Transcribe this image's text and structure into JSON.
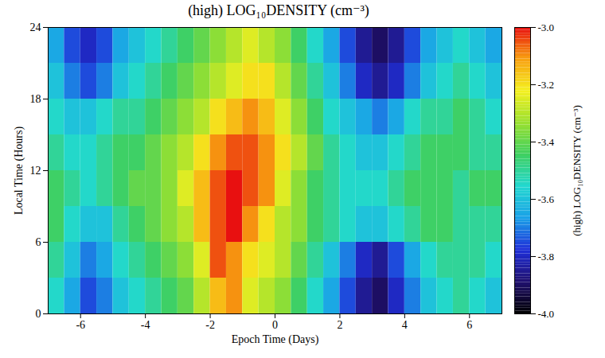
{
  "chart_data": {
    "type": "heatmap",
    "title": "(high) LOG₁₀DENSITY (cm⁻³)",
    "x_label": "Epoch Time (Days)",
    "y_label": "Local Time (Hours)",
    "xlim": [
      -7,
      7
    ],
    "xticks": [
      -6,
      -4,
      -2,
      0,
      2,
      4,
      6
    ],
    "ylim": [
      0,
      24
    ],
    "yticks": [
      0,
      6,
      12,
      18,
      24
    ],
    "x_edges": [
      -7,
      -6.5,
      -6,
      -5.5,
      -5,
      -4.5,
      -4,
      -3.5,
      -3,
      -2.5,
      -2,
      -1.5,
      -1,
      -0.5,
      0,
      0.5,
      1,
      1.5,
      2,
      2.5,
      3,
      3.5,
      4,
      4.5,
      5,
      5.5,
      6,
      6.5,
      7
    ],
    "y_edges": [
      0,
      3,
      6,
      9,
      12,
      15,
      18,
      21,
      24
    ],
    "values": [
      [
        -3.55,
        -3.65,
        -3.75,
        -3.7,
        -3.6,
        -3.55,
        -3.5,
        -3.45,
        -3.4,
        -3.3,
        -3.15,
        -3.1,
        -3.25,
        -3.3,
        -3.35,
        -3.45,
        -3.55,
        -3.65,
        -3.75,
        -3.85,
        -3.9,
        -3.8,
        -3.7,
        -3.6,
        -3.55,
        -3.5,
        -3.55,
        -3.6
      ],
      [
        -3.5,
        -3.6,
        -3.7,
        -3.65,
        -3.55,
        -3.5,
        -3.45,
        -3.4,
        -3.35,
        -3.25,
        -3.05,
        -3.1,
        -3.2,
        -3.25,
        -3.3,
        -3.4,
        -3.5,
        -3.6,
        -3.7,
        -3.8,
        -3.85,
        -3.75,
        -3.65,
        -3.55,
        -3.5,
        -3.5,
        -3.5,
        -3.55
      ],
      [
        -3.45,
        -3.55,
        -3.6,
        -3.6,
        -3.5,
        -3.45,
        -3.4,
        -3.35,
        -3.3,
        -3.15,
        -3.05,
        -3.0,
        -3.1,
        -3.2,
        -3.3,
        -3.35,
        -3.45,
        -3.5,
        -3.55,
        -3.6,
        -3.6,
        -3.55,
        -3.5,
        -3.45,
        -3.45,
        -3.5,
        -3.5,
        -3.5
      ],
      [
        -3.45,
        -3.5,
        -3.55,
        -3.5,
        -3.45,
        -3.4,
        -3.4,
        -3.35,
        -3.25,
        -3.15,
        -3.05,
        -3.0,
        -3.05,
        -3.1,
        -3.25,
        -3.35,
        -3.45,
        -3.5,
        -3.55,
        -3.55,
        -3.55,
        -3.5,
        -3.45,
        -3.45,
        -3.45,
        -3.5,
        -3.45,
        -3.45
      ],
      [
        -3.5,
        -3.55,
        -3.55,
        -3.5,
        -3.45,
        -3.45,
        -3.4,
        -3.35,
        -3.3,
        -3.2,
        -3.1,
        -3.05,
        -3.05,
        -3.1,
        -3.2,
        -3.3,
        -3.4,
        -3.5,
        -3.55,
        -3.6,
        -3.6,
        -3.55,
        -3.5,
        -3.45,
        -3.45,
        -3.45,
        -3.5,
        -3.5
      ],
      [
        -3.55,
        -3.6,
        -3.6,
        -3.55,
        -3.5,
        -3.5,
        -3.45,
        -3.4,
        -3.35,
        -3.3,
        -3.2,
        -3.15,
        -3.1,
        -3.15,
        -3.25,
        -3.35,
        -3.45,
        -3.55,
        -3.6,
        -3.65,
        -3.7,
        -3.65,
        -3.55,
        -3.5,
        -3.5,
        -3.45,
        -3.5,
        -3.55
      ],
      [
        -3.6,
        -3.7,
        -3.75,
        -3.7,
        -3.6,
        -3.55,
        -3.5,
        -3.45,
        -3.4,
        -3.35,
        -3.3,
        -3.25,
        -3.2,
        -3.2,
        -3.3,
        -3.4,
        -3.5,
        -3.6,
        -3.7,
        -3.8,
        -3.85,
        -3.8,
        -3.7,
        -3.6,
        -3.55,
        -3.5,
        -3.55,
        -3.6
      ],
      [
        -3.65,
        -3.75,
        -3.8,
        -3.75,
        -3.65,
        -3.6,
        -3.55,
        -3.5,
        -3.45,
        -3.4,
        -3.35,
        -3.3,
        -3.25,
        -3.3,
        -3.35,
        -3.45,
        -3.55,
        -3.65,
        -3.75,
        -3.85,
        -3.9,
        -3.85,
        -3.75,
        -3.65,
        -3.6,
        -3.55,
        -3.6,
        -3.65
      ]
    ],
    "colorbar_label": "(high) LOG₁₀DENSITY (cm⁻³)",
    "colorbar_range": [
      -4,
      -3
    ],
    "colorbar_ticks": [
      {
        "value": -4,
        "label": "-4.0"
      },
      {
        "value": -3.8,
        "label": "-3.8"
      },
      {
        "value": -3.6,
        "label": "-3.6"
      },
      {
        "value": -3.4,
        "label": "-3.4"
      },
      {
        "value": -3.2,
        "label": "-3.2"
      },
      {
        "value": -3,
        "label": "-3.0"
      }
    ]
  }
}
